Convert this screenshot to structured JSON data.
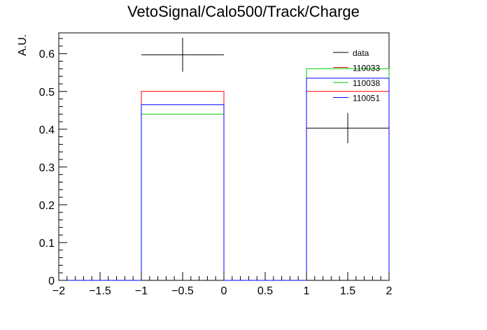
{
  "chart_data": {
    "type": "histogram",
    "title": "VetoSignal/Calo500/Track/Charge",
    "xlabel": "",
    "ylabel": "A.U.",
    "xlim": [
      -2,
      2
    ],
    "ylim": [
      0,
      0.655
    ],
    "x_ticks": [
      -2,
      -1.5,
      -1,
      -0.5,
      0,
      0.5,
      1,
      1.5,
      2
    ],
    "x_tick_labels": [
      "−2",
      "−1.5",
      "−1",
      "−0.5",
      "0",
      "0.5",
      "1",
      "1.5",
      "2"
    ],
    "y_ticks": [
      0,
      0.1,
      0.2,
      0.3,
      0.4,
      0.5,
      0.6
    ],
    "y_tick_labels": [
      "0",
      "0.1",
      "0.2",
      "0.3",
      "0.4",
      "0.5",
      "0.6"
    ],
    "bin_edges": [
      -2,
      -1,
      0,
      1,
      2
    ],
    "legend_position": "top-right",
    "series": [
      {
        "name": "110033",
        "kind": "hist",
        "color": "#ff0000",
        "values": [
          0,
          0.5,
          0,
          0.5
        ]
      },
      {
        "name": "110038",
        "kind": "hist",
        "color": "#00cc00",
        "values": [
          0,
          0.44,
          0,
          0.56
        ]
      },
      {
        "name": "110051",
        "kind": "hist",
        "color": "#0000ff",
        "values": [
          0,
          0.465,
          0,
          0.535
        ]
      }
    ],
    "data_points": {
      "name": "data",
      "color": "#000000",
      "points": [
        {
          "x": -0.5,
          "y": 0.597,
          "xerr": 0.5,
          "yerr": 0.045
        },
        {
          "x": 1.5,
          "y": 0.403,
          "xerr": 0.5,
          "yerr": 0.04
        }
      ]
    },
    "legend_order": [
      "data",
      "110033",
      "110038",
      "110051"
    ]
  }
}
